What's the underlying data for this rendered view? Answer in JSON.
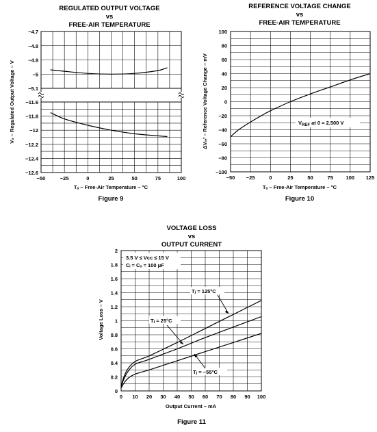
{
  "chart_data": [
    {
      "type": "line",
      "title_lines": [
        "REGULATED OUTPUT VOLTAGE",
        "vs",
        "FREE-AIR TEMPERATURE"
      ],
      "ylabel": "V₀ – Regulated Output Voltage – V",
      "xlabel": "Tₐ – Free-Air Temperature – °C",
      "figure": "Figure 9",
      "x_ticks": [
        -50,
        -25,
        0,
        25,
        50,
        75,
        100
      ],
      "x_tick_labels": [
        "−50",
        "−25",
        "0",
        "25",
        "50",
        "75",
        "100"
      ],
      "xlim": [
        -50,
        100
      ],
      "y_segments": [
        {
          "range": [
            -4.7,
            -5.1
          ],
          "ticks": [
            -4.7,
            -4.8,
            -4.9,
            -5,
            -5.1
          ],
          "tick_labels": [
            "−4.7",
            "−4.8",
            "−4.9",
            "−5",
            "−5.1"
          ]
        },
        {
          "range": [
            -11.6,
            -12.6
          ],
          "ticks": [
            -11.6,
            -11.8,
            -12,
            -12.2,
            -12.4,
            -12.6
          ],
          "tick_labels": [
            "−11.6",
            "−11.8",
            "−12",
            "−12.2",
            "−12.4",
            "−12.6"
          ]
        }
      ],
      "grid": true,
      "series": [
        {
          "x": [
            -40,
            -25,
            0,
            25,
            50,
            75,
            85
          ],
          "y": [
            -4.97,
            -4.98,
            -4.995,
            -5.0,
            -4.995,
            -4.975,
            -4.955
          ]
        },
        {
          "x": [
            -40,
            -25,
            0,
            25,
            50,
            75,
            85
          ],
          "y": [
            -11.75,
            -11.84,
            -11.93,
            -12.0,
            -12.05,
            -12.08,
            -12.09
          ]
        }
      ]
    },
    {
      "type": "line",
      "title_lines": [
        "REFERENCE VOLTAGE CHANGE",
        "vs",
        "FREE-AIR TEMPERATURE"
      ],
      "ylabel": "ΔVᵣₑᶠ – Reference Voltage Change – mV",
      "xlabel": "Tₐ – Free-Air Temperature – °C",
      "figure": "Figure 10",
      "x_ticks": [
        -50,
        -25,
        0,
        25,
        50,
        75,
        100,
        125
      ],
      "x_tick_labels": [
        "−50",
        "−25",
        "0",
        "25",
        "50",
        "75",
        "100",
        "125"
      ],
      "xlim": [
        -50,
        125
      ],
      "y_ticks": [
        100,
        80,
        60,
        40,
        20,
        0,
        -20,
        -40,
        -60,
        -80,
        -100
      ],
      "y_tick_labels": [
        "100",
        "80",
        "60",
        "40",
        "20",
        "0",
        "−20",
        "−40",
        "−60",
        "−80",
        "−100"
      ],
      "ylim": [
        -100,
        100
      ],
      "grid": true,
      "annotation": {
        "prefix": "V",
        "sub": "REF",
        "text": " at 0 = 2.500 V"
      },
      "series": [
        {
          "x": [
            -50,
            -40,
            -25,
            -10,
            0,
            25,
            50,
            75,
            100,
            125
          ],
          "y": [
            -50,
            -40,
            -29,
            -19,
            -13,
            0,
            11,
            21,
            31,
            40
          ]
        }
      ]
    },
    {
      "type": "line",
      "title_lines": [
        "VOLTAGE LOSS",
        "vs",
        "OUTPUT CURRENT"
      ],
      "ylabel": "Voltage Loss – V",
      "xlabel": "Output Current – mA",
      "figure": "Figure 11",
      "x_ticks": [
        0,
        10,
        20,
        30,
        40,
        50,
        60,
        70,
        80,
        90,
        100
      ],
      "x_tick_labels": [
        "0",
        "10",
        "20",
        "30",
        "40",
        "50",
        "60",
        "70",
        "80",
        "90",
        "100"
      ],
      "xlim": [
        0,
        100
      ],
      "y_ticks": [
        0,
        0.2,
        0.4,
        0.6,
        0.8,
        1,
        1.2,
        1.4,
        1.6,
        1.8,
        2
      ],
      "y_tick_labels": [
        "0",
        "0.2",
        "0.4",
        "0.6",
        "0.8",
        "1",
        "1.2",
        "1.4",
        "1.6",
        "1.8",
        "2"
      ],
      "ylim": [
        0,
        2
      ],
      "grid": true,
      "conditions": [
        "3.5 V ≤ Vᴄᴄ ≤ 15 V",
        "Cᵢ = Cₒ = 100 μF"
      ],
      "series": [
        {
          "name": "Tⱼ = 125°C",
          "x": [
            0,
            2,
            5,
            10,
            20,
            40,
            60,
            80,
            100
          ],
          "y": [
            0.07,
            0.2,
            0.32,
            0.42,
            0.5,
            0.69,
            0.89,
            1.09,
            1.29
          ]
        },
        {
          "name": "Tⱼ = 25°C",
          "x": [
            0,
            2,
            5,
            10,
            20,
            40,
            60,
            80,
            100
          ],
          "y": [
            0.06,
            0.17,
            0.28,
            0.38,
            0.45,
            0.6,
            0.76,
            0.91,
            1.06
          ]
        },
        {
          "name": "Tⱼ = −55°C",
          "x": [
            0,
            2,
            5,
            10,
            20,
            40,
            60,
            80,
            100
          ],
          "y": [
            0.04,
            0.11,
            0.18,
            0.24,
            0.3,
            0.43,
            0.56,
            0.69,
            0.82
          ]
        }
      ]
    }
  ]
}
